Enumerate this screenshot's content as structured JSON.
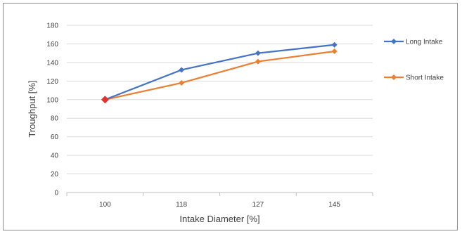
{
  "chart_data": {
    "type": "line",
    "categories": [
      "100",
      "118",
      "127",
      "145"
    ],
    "series": [
      {
        "name": "Long Intake",
        "values": [
          100,
          132,
          150,
          159
        ],
        "color": "#4472C4"
      },
      {
        "name": "Short Intake",
        "values": [
          100,
          118,
          141,
          152
        ],
        "color": "#ED7D31"
      }
    ],
    "highlight_color": "#E8302A",
    "xlabel": "Intake Diameter [%]",
    "ylabel": "Troughput [%]",
    "ylim": [
      0,
      180
    ],
    "yticks": [
      0,
      20,
      40,
      60,
      80,
      100,
      120,
      140,
      160,
      180
    ],
    "grid": true,
    "legend_position": "right"
  }
}
